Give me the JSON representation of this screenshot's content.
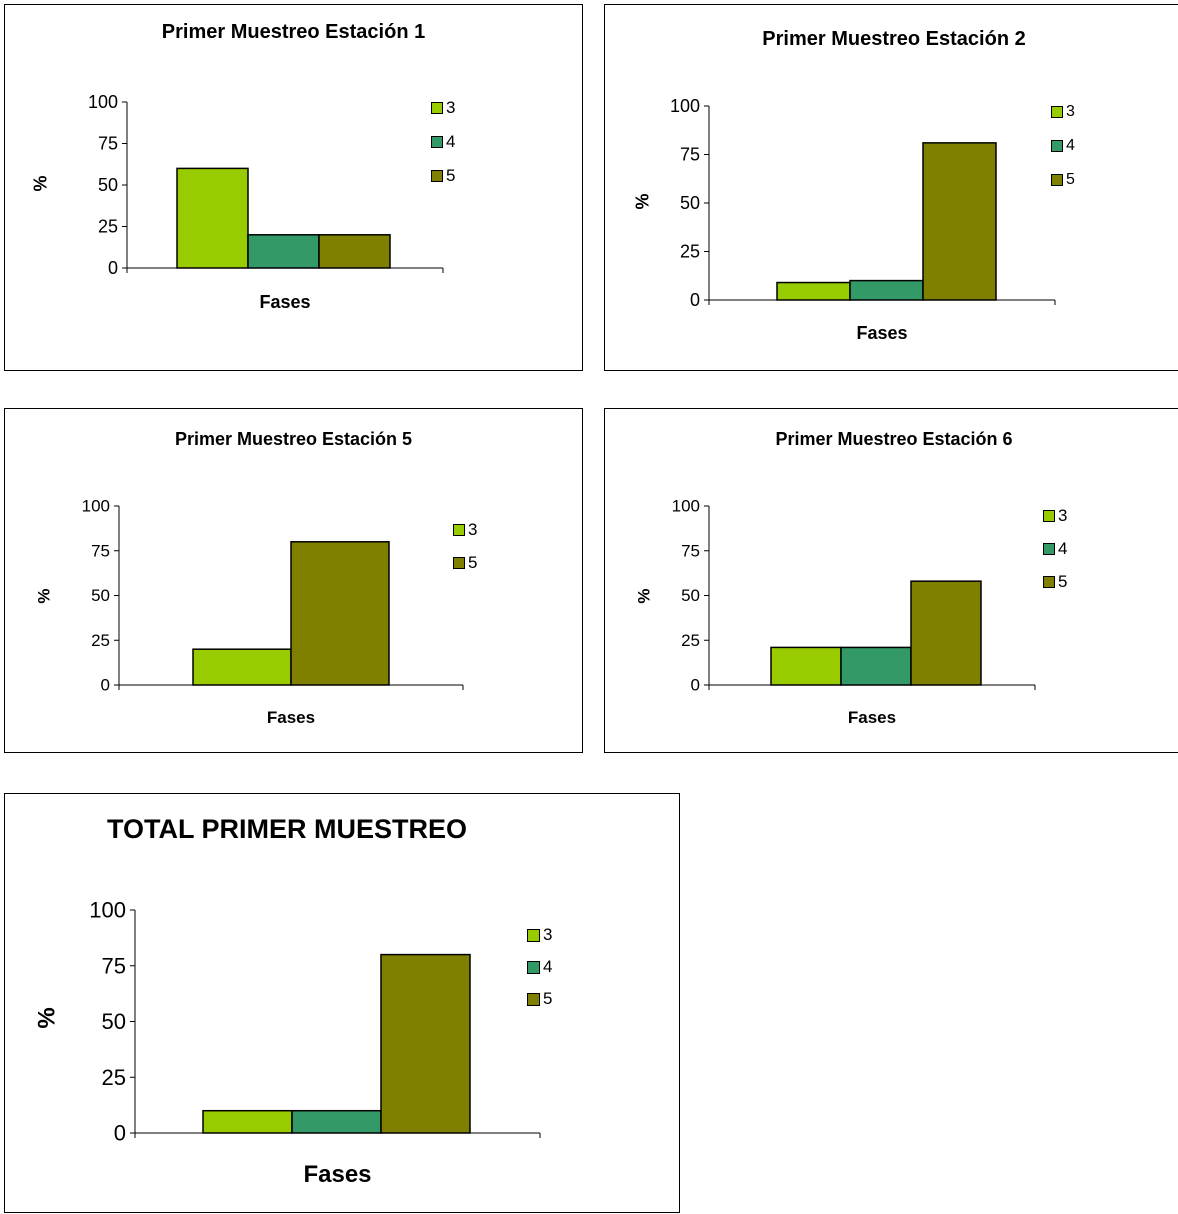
{
  "chart_data": [
    {
      "type": "bar",
      "title": "Primer Muestreo Estación 1",
      "xlabel": "Fases",
      "ylabel": "%",
      "ylim": [
        0,
        100
      ],
      "yticks": [
        0,
        25,
        50,
        75,
        100
      ],
      "legend_position": "top-right",
      "series": [
        {
          "name": "3",
          "value": 60,
          "color": "#99cc00"
        },
        {
          "name": "4",
          "value": 20,
          "color": "#339966"
        },
        {
          "name": "5",
          "value": 20,
          "color": "#808000"
        }
      ]
    },
    {
      "type": "bar",
      "title": "Primer Muestreo Estación 2",
      "xlabel": "Fases",
      "ylabel": "%",
      "ylim": [
        0,
        100
      ],
      "yticks": [
        0,
        25,
        50,
        75,
        100
      ],
      "legend_position": "top-right",
      "series": [
        {
          "name": "3",
          "value": 9,
          "color": "#99cc00"
        },
        {
          "name": "4",
          "value": 10,
          "color": "#339966"
        },
        {
          "name": "5",
          "value": 81,
          "color": "#808000"
        }
      ]
    },
    {
      "type": "bar",
      "title": "Primer Muestreo Estación 5",
      "xlabel": "Fases",
      "ylabel": "%",
      "ylim": [
        0,
        100
      ],
      "yticks": [
        0,
        25,
        50,
        75,
        100
      ],
      "legend_position": "top-right",
      "series": [
        {
          "name": "3",
          "value": 20,
          "color": "#99cc00"
        },
        {
          "name": "5",
          "value": 80,
          "color": "#808000"
        }
      ]
    },
    {
      "type": "bar",
      "title": "Primer Muestreo Estación 6",
      "xlabel": "Fases",
      "ylabel": "%",
      "ylim": [
        0,
        100
      ],
      "yticks": [
        0,
        25,
        50,
        75,
        100
      ],
      "legend_position": "top-right",
      "series": [
        {
          "name": "3",
          "value": 21,
          "color": "#99cc00"
        },
        {
          "name": "4",
          "value": 21,
          "color": "#339966"
        },
        {
          "name": "5",
          "value": 58,
          "color": "#808000"
        }
      ]
    },
    {
      "type": "bar",
      "title": "TOTAL PRIMER MUESTREO",
      "xlabel": "Fases",
      "ylabel": "%",
      "ylim": [
        0,
        100
      ],
      "yticks": [
        0,
        25,
        50,
        75,
        100
      ],
      "legend_position": "top-right",
      "series": [
        {
          "name": "3",
          "value": 10,
          "color": "#99cc00"
        },
        {
          "name": "4",
          "value": 10,
          "color": "#339966"
        },
        {
          "name": "5",
          "value": 80,
          "color": "#808000"
        }
      ]
    }
  ]
}
